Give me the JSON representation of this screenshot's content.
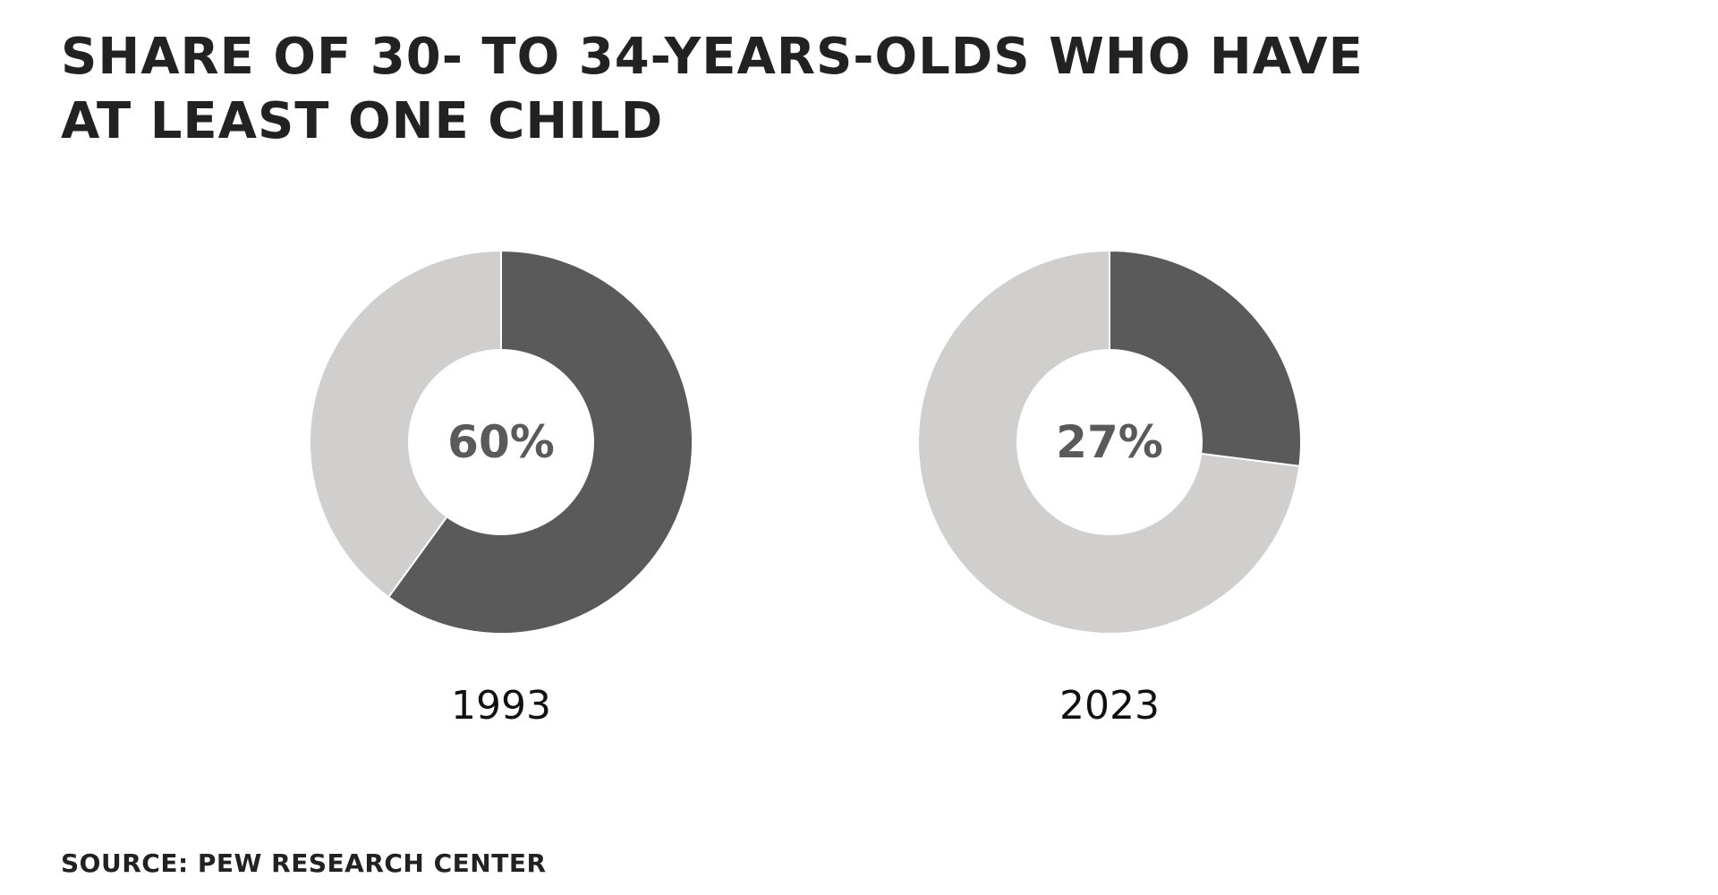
{
  "title": {
    "line1": "SHARE OF 30- TO 34-YEARS-OLDS WHO HAVE",
    "line2": "AT LEAST ONE CHILD"
  },
  "source": "SOURCE: PEW RESEARCH CENTER",
  "colors": {
    "highlight": "#5a5a5a",
    "remainder": "#d0cfcd",
    "center": "#ffffff"
  },
  "chart_data": [
    {
      "type": "pie",
      "variant": "donut",
      "category": "1993",
      "values": [
        60,
        40
      ],
      "center_label": "60%",
      "year_label": "1993"
    },
    {
      "type": "pie",
      "variant": "donut",
      "category": "2023",
      "values": [
        27,
        73
      ],
      "center_label": "27%",
      "year_label": "2023"
    }
  ]
}
